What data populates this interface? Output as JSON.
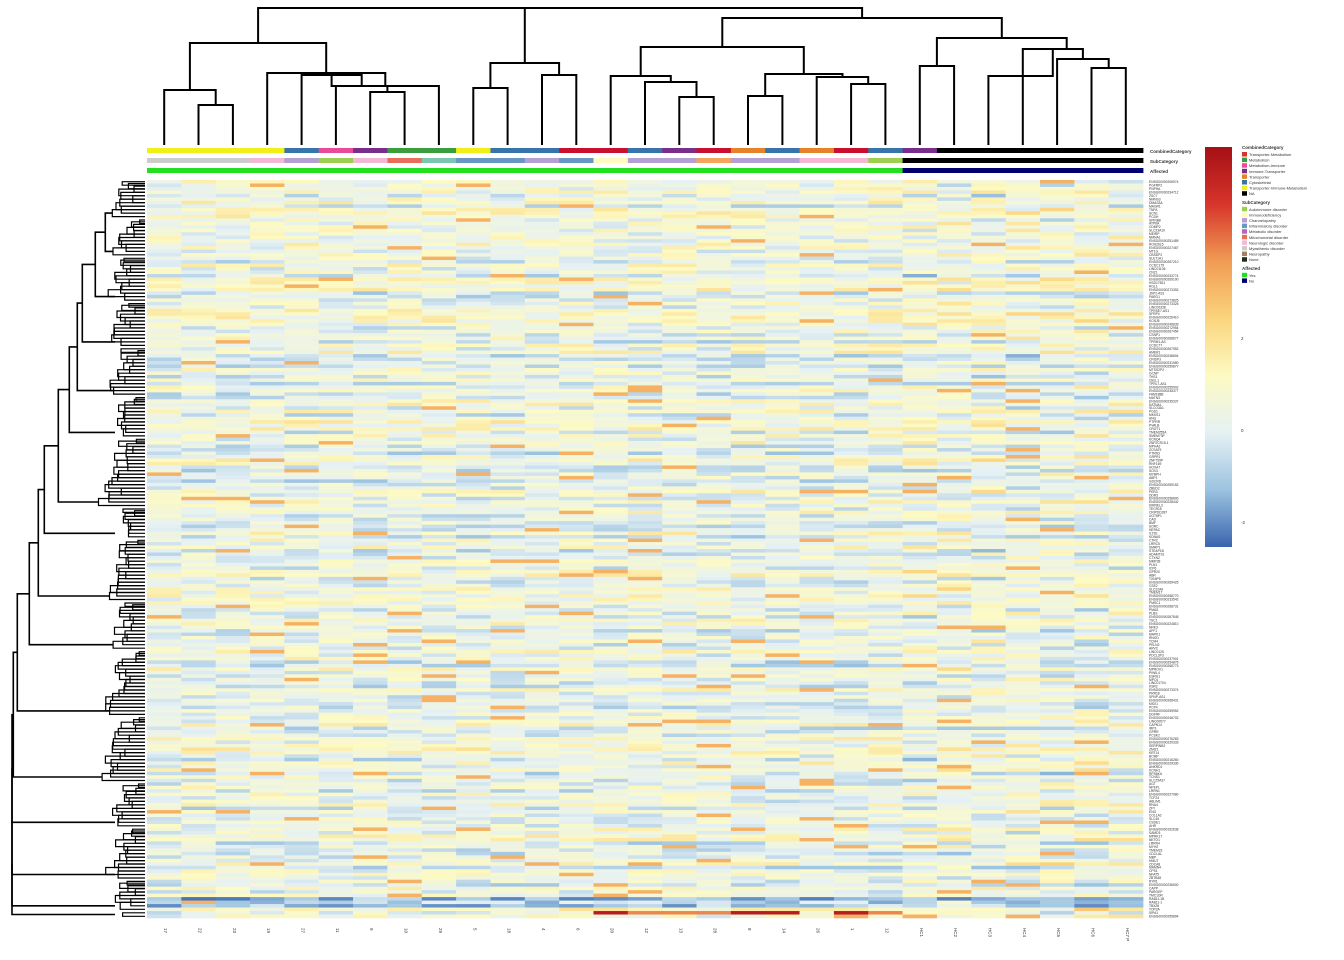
{
  "chart_data": {
    "type": "heatmap",
    "title": "",
    "columns": [
      "17",
      "22",
      "23",
      "19",
      "27",
      "11",
      "9",
      "10",
      "29",
      "5",
      "18",
      "4",
      "6",
      "20",
      "12",
      "13",
      "28",
      "8",
      "14",
      "26",
      "1",
      "12",
      "HC1",
      "HC2",
      "HC3",
      "HC4",
      "HC5",
      "HC6",
      "HC7 P"
    ],
    "row_labels": [
      "ENSG00000206974",
      "PGFRP2",
      "PNPHA",
      "ENSG00000234712",
      "ZSC7",
      "NMNS3",
      "DMAS3A",
      "MAGR1",
      "TNFA",
      "SCN1",
      "PCDH",
      "SPINB8",
      "ATP6A",
      "CDMP2",
      "SLC23A10",
      "MEIRP",
      "NMNA1",
      "ENSG00000251489",
      "ROS26L5",
      "ENSG00000227467",
      "MT1G",
      "CBSDP2",
      "SULT1A1",
      "ENSG00000267210",
      "CCDC175",
      "LINC01106",
      "CN21",
      "ENSG00000233774",
      "ENSG00000269100",
      "HSD17B11",
      "RGL1",
      "ENSG00000273392",
      "JDP2-AS1",
      "PARG1",
      "ENSG00000273825",
      "ENSG00000273325",
      "LINC00338",
      "TPRSE7-AS1",
      "SFRP4",
      "ENSG00000226410",
      "KCNJ5",
      "ENSG00000246839",
      "ENSG00000272954",
      "ENSG00000267454",
      "CSNP1",
      "ENSG00000268677",
      "TPRM1-AS",
      "CCDC77",
      "ENSG00000267952",
      "AMER1",
      "ENSG00000248604",
      "CRISP3",
      "ENSG00000231980",
      "ENSG00000259877",
      "MTSS2P2",
      "GCNP",
      "THS1",
      "CBLL1",
      "TPRL7-AS1",
      "ENSG00000255902",
      "ENSG00000235377",
      "FAM188B",
      "MATN3",
      "ENSG00000235337",
      "KATNAL",
      "SLCO3A1",
      "PGS1",
      "MKKS1",
      "ANG",
      "PTPRR",
      "PVALB",
      "CROT1",
      "TMEM255A",
      "SMEM73P",
      "KCNQ4",
      "ZNF2CR15-1",
      "MPHA2",
      "ZCSAT9",
      "PTRN3",
      "GRPR1",
      "ZNF759P",
      "RNF169",
      "HOXA7",
      "SOX3",
      "MYBPH",
      "ABP1",
      "GDCRD",
      "ENSG00000259152",
      "ZBED2",
      "PER3",
      "DDR3",
      "ENSG00000258800",
      "ENSG00000228442",
      "KIRREL3",
      "TECR15",
      "CRIPDD287",
      "UGT8P1",
      "CAD",
      "BMF",
      "SORC",
      "HEPAC",
      "ILT2E",
      "KDNAS",
      "CTRC",
      "LRRC5",
      "SMRP1",
      "STEAP1B",
      "ADAMTS1",
      "CTXN2",
      "MMP28",
      "PLN1",
      "ICP6",
      "GPR20",
      "ABR",
      "TXNIP5",
      "ENSG00000269425",
      "CSE2",
      "SLC22A9",
      "TMEM17",
      "ENSG00000268770",
      "ENSG00000233542",
      "PMSC1",
      "ENSG00000268731",
      "PMAS",
      "PLBS",
      "ENSG00000267845",
      "TSC1",
      "ENSG00000224810",
      "NRK3",
      "AFF1",
      "MAPK1",
      "RNOD",
      "TCM4",
      "PELN2",
      "ARVC",
      "LINC0125",
      "PDCL3P3",
      "ENSG00000237901",
      "ENSG00000254876",
      "ENSG00000268773",
      "MPROV1",
      "PIWIL4",
      "ESRG1",
      "MPO1",
      "LINC01704",
      "KSR2",
      "ENSG00000273374",
      "PRR18",
      "SPNP-AS1",
      "ENSG00000268431",
      "MSX1",
      "PCP4",
      "ENSG00000259952",
      "DGFRF",
      "ENSG00000246702",
      "LINC00577",
      "CAPN14",
      "IRP3",
      "GPRR",
      "PCSK2",
      "ENSG00000276283",
      "ENSG00000229333",
      "SERPINB2",
      "ZMIZ1",
      "KRT14",
      "BCMP",
      "ENSG00000216260",
      "ENSG00000229330",
      "ANKRD1",
      "KCNH1",
      "RPS6KA",
      "TCNS1",
      "SLC25A37",
      "AGT",
      "NPEPL",
      "LRRN1",
      "ENSG00000227980",
      "TCF24",
      "ABLIM1",
      "RNU4",
      "ZFY",
      "ENG",
      "COL1A2",
      "SLC45",
      "CSDE1",
      "AHR",
      "ENSG00000152638",
      "SAMD3",
      "MPRK17",
      "NETO1",
      "LRRN4",
      "MYH2",
      "TMEM23",
      "CDCLAL",
      "MBP",
      "HMUT",
      "CDCA8",
      "MAMN4",
      "CPS1",
      "NFAT5",
      "ZBTB48",
      "RYR1",
      "ENSG00000236500",
      "CAPP",
      "PARGEP",
      "TMC1DR",
      "RAB11-1B",
      "RAB11-1",
      "TBX28",
      "TOP2A",
      "SIPA1",
      "ENSG00000259894"
    ],
    "color_scale": {
      "stops": [
        "#3a65ae",
        "#9cc3e0",
        "#e6f1f4",
        "#fdfac3",
        "#fbd47e",
        "#f19c55",
        "#d6352b",
        "#a50f15"
      ],
      "ticks": [
        "-2",
        "0",
        "2"
      ]
    },
    "annotations": [
      {
        "name": "CombinedCategory",
        "colors": [
          "#f0f018",
          "#f0f018",
          "#f0f018",
          "#f0f018",
          "#3774a9",
          "#e84c98",
          "#7a2e8b",
          "#3a9d3e",
          "#3a9d3e",
          "#f0f018",
          "#3774a9",
          "#3774a9",
          "#c8102e",
          "#c8102e",
          "#3774a9",
          "#7a2e8b",
          "#c8102e",
          "#e5822a",
          "#3774a9",
          "#e5822a",
          "#c8102e",
          "#3774a9",
          "#7a2e8b",
          "#000000",
          "#000000",
          "#000000",
          "#000000",
          "#000000",
          "#000000"
        ]
      },
      {
        "name": "SubCategory",
        "colors": [
          "#cccccc",
          "#cccccc",
          "#cccccc",
          "#f4b8d4",
          "#b5a0d6",
          "#9cd14f",
          "#f4b8d4",
          "#e86e5a",
          "#7bc6b0",
          "#6897c4",
          "#6897c4",
          "#b5a0d6",
          "#6897c4",
          "#fffac0",
          "#b5a0d6",
          "#b5a0d6",
          "#f4a55a",
          "#b5a0d6",
          "#b5a0d6",
          "#f4b8d4",
          "#f4b8d4",
          "#9cd14f",
          "#000000",
          "#000000",
          "#000000",
          "#000000",
          "#000000",
          "#000000",
          "#000000"
        ]
      },
      {
        "name": "Affected",
        "colors": [
          "#22e01f",
          "#22e01f",
          "#22e01f",
          "#22e01f",
          "#22e01f",
          "#22e01f",
          "#22e01f",
          "#22e01f",
          "#22e01f",
          "#22e01f",
          "#22e01f",
          "#22e01f",
          "#22e01f",
          "#22e01f",
          "#22e01f",
          "#22e01f",
          "#22e01f",
          "#22e01f",
          "#22e01f",
          "#22e01f",
          "#22e01f",
          "#22e01f",
          "#000070",
          "#000070",
          "#000070",
          "#000070",
          "#000070",
          "#000070",
          "#000070"
        ]
      }
    ],
    "legend": [
      {
        "title": "CombinedCategory",
        "items": [
          {
            "label": "Transporter-Metabolism",
            "color": "#d6352b"
          },
          {
            "label": "Metabolism",
            "color": "#3a9d3e"
          },
          {
            "label": "Metabolism-Immune",
            "color": "#e84c98"
          },
          {
            "label": "Immune-Transporter",
            "color": "#7a2e8b"
          },
          {
            "label": "Transporter",
            "color": "#e5822a"
          },
          {
            "label": "Cytoskeletal",
            "color": "#3774a9"
          },
          {
            "label": "Transporter-Immune-Metabolism",
            "color": "#f0f018"
          },
          {
            "label": "NA",
            "color": "#000000"
          }
        ]
      },
      {
        "title": "SubCategory",
        "items": [
          {
            "label": "Autoimmune disorder",
            "color": "#9cd14f"
          },
          {
            "label": "Immunodeficiency",
            "color": "#fffac0"
          },
          {
            "label": "Channelopathy",
            "color": "#b5a0d6"
          },
          {
            "label": "Inflammatory disorder",
            "color": "#6897c4"
          },
          {
            "label": "Metabolic disorder",
            "color": "#b565b8"
          },
          {
            "label": "Mitochondrial disorder",
            "color": "#e86e5a"
          },
          {
            "label": "Neurologic disorder",
            "color": "#f4b8d4"
          },
          {
            "label": "Myasthenic disorder",
            "color": "#cccccc"
          },
          {
            "label": "Neuropathy",
            "color": "#a08262"
          },
          {
            "label": "None",
            "color": "#1f2e1f"
          }
        ]
      },
      {
        "title": "Affected",
        "items": [
          {
            "label": "Yes",
            "color": "#22e01f"
          },
          {
            "label": "No",
            "color": "#000070"
          }
        ]
      }
    ]
  }
}
